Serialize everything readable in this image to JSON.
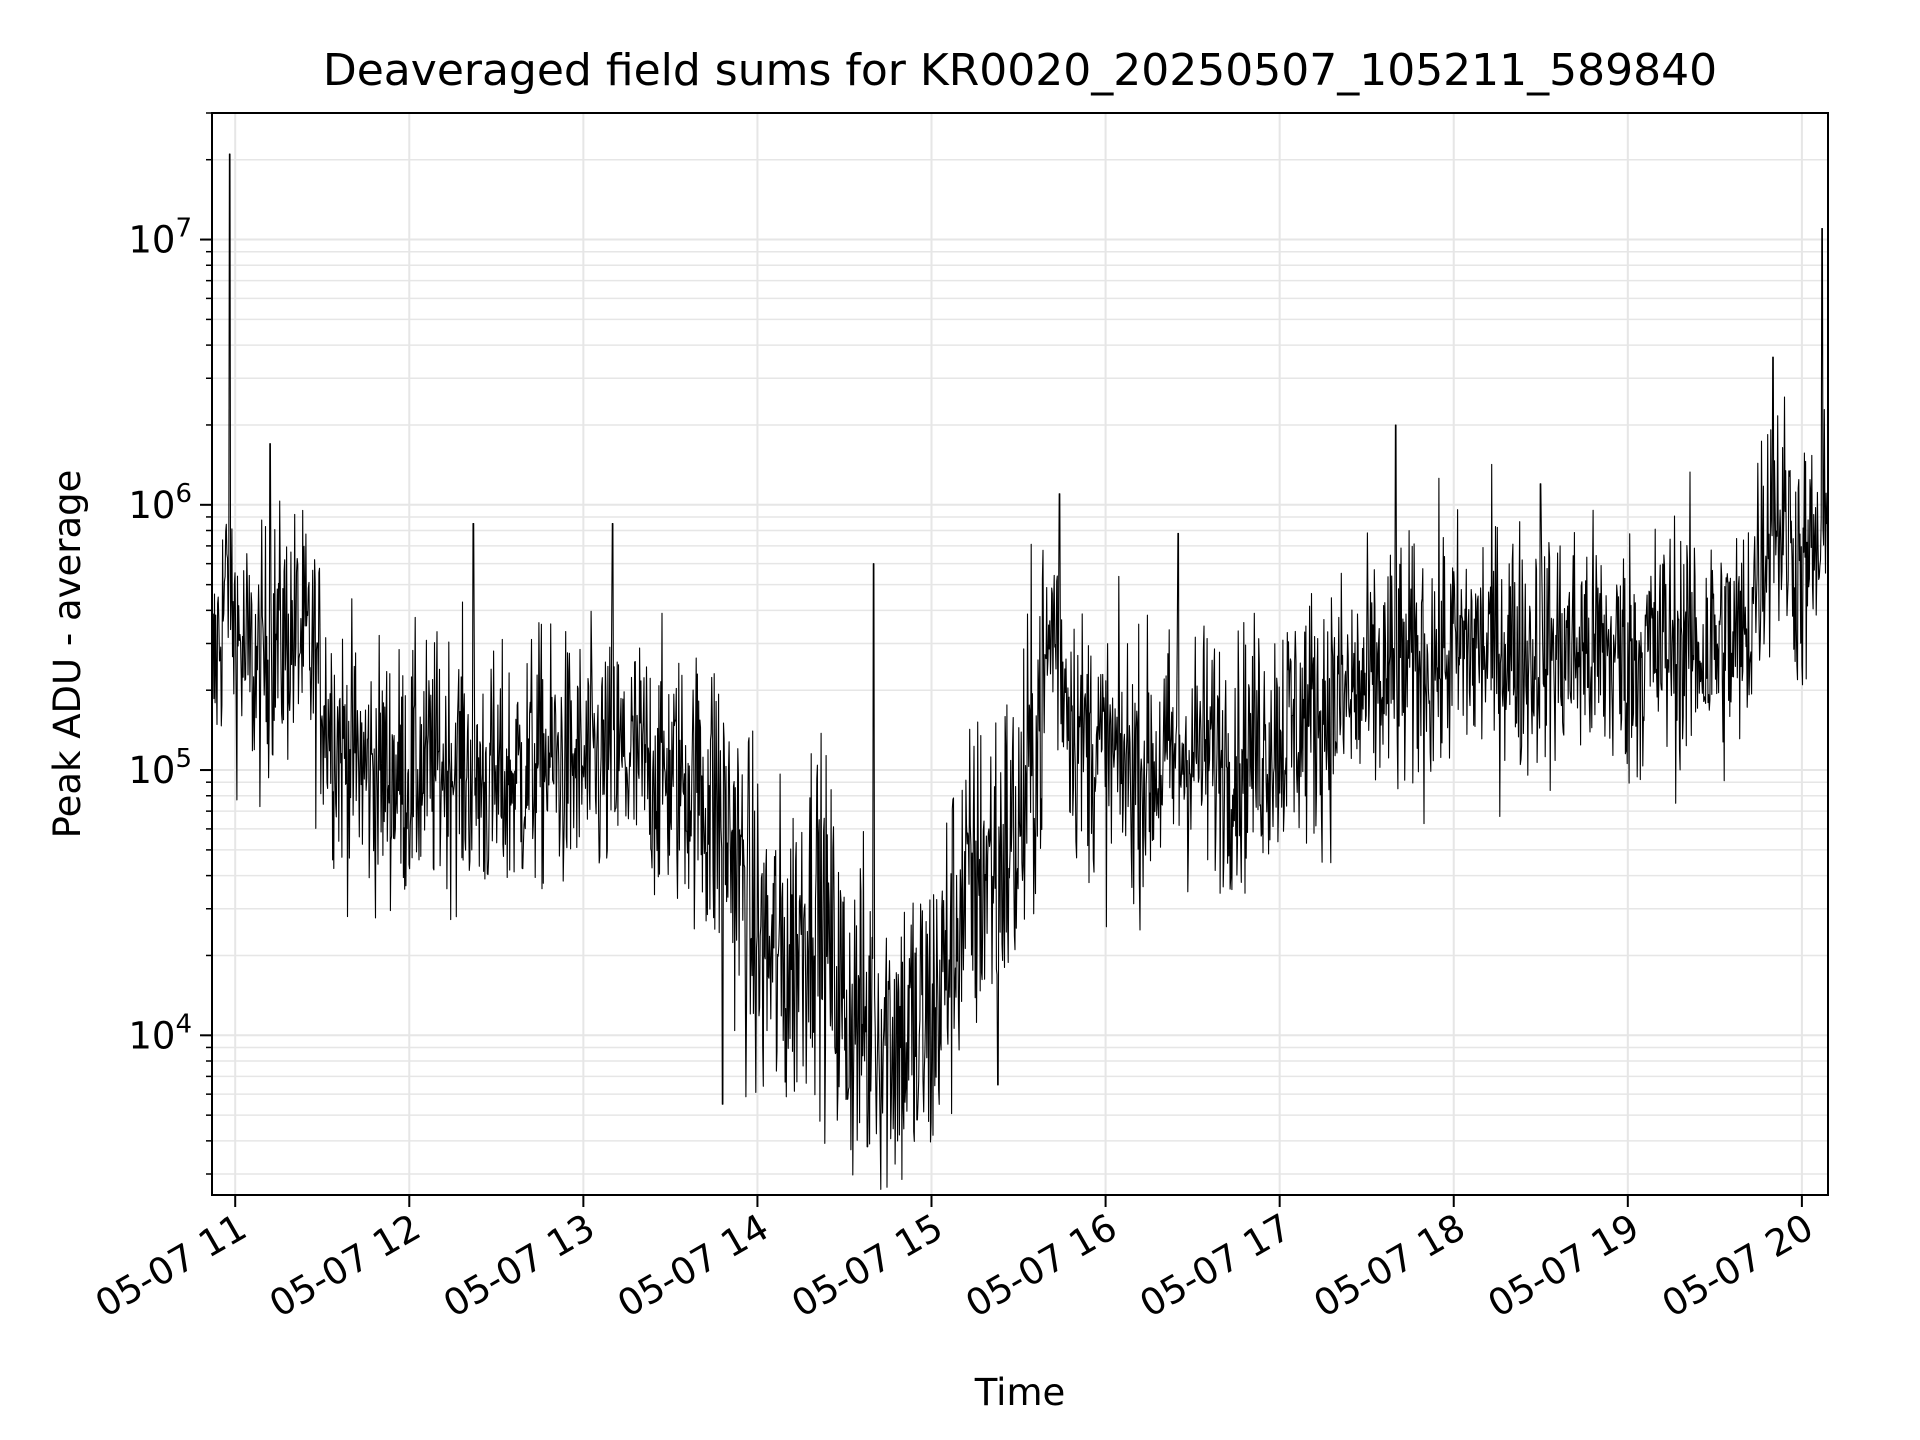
{
  "chart_data": {
    "type": "line",
    "title": "Deaveraged field sums for KR0020_20250507_105211_589840",
    "xlabel": "Time",
    "ylabel": "Peak ADU - average",
    "y_scale": "log",
    "ylim": [
      2500,
      30000000
    ],
    "xlim": [
      "2025-05-07 10:52",
      "2025-05-07 20:09"
    ],
    "grid": true,
    "grid_color": "#e6e6e6",
    "line_color": "#000000",
    "x_ticks": [
      {
        "label": "05-07 11",
        "t": "2025-05-07 11:00"
      },
      {
        "label": "05-07 12",
        "t": "2025-05-07 12:00"
      },
      {
        "label": "05-07 13",
        "t": "2025-05-07 13:00"
      },
      {
        "label": "05-07 14",
        "t": "2025-05-07 14:00"
      },
      {
        "label": "05-07 15",
        "t": "2025-05-07 15:00"
      },
      {
        "label": "05-07 16",
        "t": "2025-05-07 16:00"
      },
      {
        "label": "05-07 17",
        "t": "2025-05-07 17:00"
      },
      {
        "label": "05-07 18",
        "t": "2025-05-07 18:00"
      },
      {
        "label": "05-07 19",
        "t": "2025-05-07 19:00"
      },
      {
        "label": "05-07 20",
        "t": "2025-05-07 20:00"
      }
    ],
    "y_ticks": [
      {
        "base": "10",
        "exp": "4",
        "value": 10000
      },
      {
        "base": "10",
        "exp": "5",
        "value": 100000
      },
      {
        "base": "10",
        "exp": "6",
        "value": 1000000
      },
      {
        "base": "10",
        "exp": "7",
        "value": 10000000
      }
    ],
    "series": [
      {
        "x": [
          "2025-05-07 10:52",
          "2025-05-07 10:57",
          "2025-05-07 11:02",
          "2025-05-07 11:08",
          "2025-05-07 11:12",
          "2025-05-07 11:18",
          "2025-05-07 11:22",
          "2025-05-07 11:27",
          "2025-05-07 11:35",
          "2025-05-07 11:45",
          "2025-05-07 12:00",
          "2025-05-07 12:15",
          "2025-05-07 12:30",
          "2025-05-07 12:45",
          "2025-05-07 13:00",
          "2025-05-07 13:15",
          "2025-05-07 13:30",
          "2025-05-07 13:40",
          "2025-05-07 13:50",
          "2025-05-07 14:00",
          "2025-05-07 14:10",
          "2025-05-07 14:20",
          "2025-05-07 14:30",
          "2025-05-07 14:40",
          "2025-05-07 14:50",
          "2025-05-07 15:00",
          "2025-05-07 15:10",
          "2025-05-07 15:20",
          "2025-05-07 15:30",
          "2025-05-07 15:38",
          "2025-05-07 15:42",
          "2025-05-07 15:45",
          "2025-05-07 15:50",
          "2025-05-07 16:00",
          "2025-05-07 16:15",
          "2025-05-07 16:30",
          "2025-05-07 16:45",
          "2025-05-07 17:00",
          "2025-05-07 17:15",
          "2025-05-07 17:30",
          "2025-05-07 17:45",
          "2025-05-07 18:00",
          "2025-05-07 18:15",
          "2025-05-07 18:30",
          "2025-05-07 18:45",
          "2025-05-07 19:00",
          "2025-05-07 19:15",
          "2025-05-07 19:30",
          "2025-05-07 19:40",
          "2025-05-07 19:45",
          "2025-05-07 19:50",
          "2025-05-07 19:55",
          "2025-05-07 20:00",
          "2025-05-07 20:05",
          "2025-05-07 20:09"
        ],
        "values": [
          200000,
          500000,
          280000,
          230000,
          300000,
          320000,
          320000,
          260000,
          130000,
          100000,
          95000,
          110000,
          85000,
          110000,
          100000,
          110000,
          95000,
          90000,
          60000,
          22000,
          18000,
          35000,
          12000,
          11000,
          10000,
          11000,
          30000,
          45000,
          55000,
          180000,
          380000,
          250000,
          140000,
          110000,
          100000,
          120000,
          110000,
          140000,
          170000,
          200000,
          240000,
          280000,
          300000,
          270000,
          290000,
          260000,
          300000,
          290000,
          300000,
          600000,
          1000000,
          800000,
          550000,
          650000,
          700000
        ],
        "peaks": [
          {
            "x": "2025-05-07 10:58",
            "y": 21000000
          },
          {
            "x": "2025-05-07 11:12",
            "y": 1700000
          },
          {
            "x": "2025-05-07 12:22",
            "y": 850000
          },
          {
            "x": "2025-05-07 13:10",
            "y": 850000
          },
          {
            "x": "2025-05-07 14:40",
            "y": 600000
          },
          {
            "x": "2025-05-07 15:44",
            "y": 1100000
          },
          {
            "x": "2025-05-07 16:25",
            "y": 780000
          },
          {
            "x": "2025-05-07 17:40",
            "y": 2000000
          },
          {
            "x": "2025-05-07 18:30",
            "y": 1200000
          },
          {
            "x": "2025-05-07 19:50",
            "y": 3600000
          },
          {
            "x": "2025-05-07 20:07",
            "y": 11000000
          }
        ],
        "troughs": [
          {
            "x": "2025-05-07 13:48",
            "y": 5500
          },
          {
            "x": "2025-05-07 14:38",
            "y": 3800
          },
          {
            "x": "2025-05-07 14:55",
            "y": 4800
          },
          {
            "x": "2025-05-07 15:23",
            "y": 6500
          }
        ]
      }
    ]
  }
}
